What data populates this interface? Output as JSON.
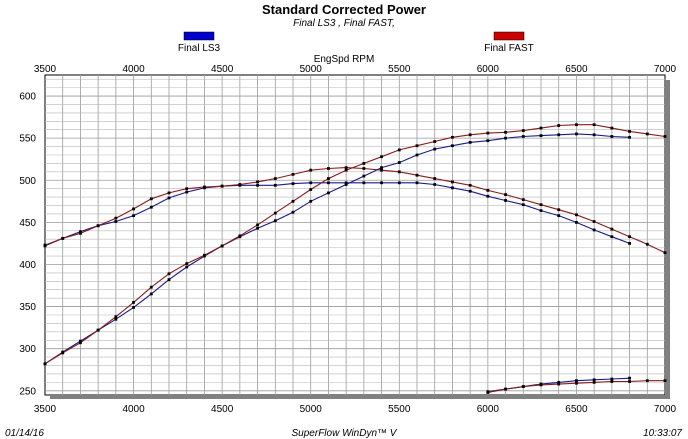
{
  "chart_data": {
    "type": "line",
    "title": "Standard Corrected Power",
    "subtitle": "Final LS3 , Final FAST,",
    "xlabel": "EngSpd RPM",
    "x_ticks": [
      3500,
      4000,
      4500,
      5000,
      5500,
      6000,
      6500,
      7000
    ],
    "y_ticks": [
      250,
      300,
      350,
      400,
      450,
      500,
      550,
      600
    ],
    "xlim": [
      3500,
      7000
    ],
    "ylim": [
      245,
      625
    ],
    "grid": true,
    "legend": [
      {
        "name": "Final LS3",
        "color": "#0000cc"
      },
      {
        "name": "Final FAST",
        "color": "#cc0000"
      }
    ],
    "series": [
      {
        "name": "Final LS3 Torque",
        "color": "#1a1a8c",
        "x": [
          3500,
          3600,
          3700,
          3800,
          3900,
          4000,
          4100,
          4200,
          4300,
          4400,
          4500,
          4600,
          4700,
          4800,
          4900,
          5000,
          5100,
          5200,
          5300,
          5400,
          5500,
          5600,
          5700,
          5800,
          5900,
          6000,
          6100,
          6200,
          6300,
          6400,
          6500,
          6600,
          6700,
          6800
        ],
        "y": [
          422,
          431,
          439,
          446,
          451,
          458,
          468,
          479,
          486,
          491,
          493,
          494,
          494,
          494,
          496,
          497,
          497,
          497,
          497,
          497,
          497,
          497,
          495,
          491,
          487,
          481,
          476,
          471,
          464,
          458,
          450,
          441,
          433,
          425
        ]
      },
      {
        "name": "Final FAST Torque",
        "color": "#8c1a1a",
        "x": [
          3500,
          3600,
          3700,
          3800,
          3900,
          4000,
          4100,
          4200,
          4300,
          4400,
          4500,
          4600,
          4700,
          4800,
          4900,
          5000,
          5100,
          5200,
          5300,
          5400,
          5500,
          5600,
          5700,
          5800,
          5900,
          6000,
          6100,
          6200,
          6300,
          6400,
          6500,
          6600,
          6700,
          6800,
          6900,
          7000
        ],
        "y": [
          423,
          431,
          437,
          446,
          455,
          466,
          478,
          485,
          490,
          492,
          493,
          495,
          498,
          502,
          507,
          512,
          514,
          515,
          514,
          512,
          510,
          506,
          502,
          498,
          494,
          488,
          483,
          477,
          471,
          465,
          459,
          451,
          442,
          433,
          424,
          414
        ]
      },
      {
        "name": "Final LS3 Power",
        "color": "#1a1a8c",
        "x": [
          3500,
          3600,
          3700,
          3800,
          3900,
          4000,
          4100,
          4200,
          4300,
          4400,
          4500,
          4600,
          4700,
          4800,
          4900,
          5000,
          5100,
          5200,
          5300,
          5400,
          5500,
          5600,
          5700,
          5800,
          5900,
          6000,
          6100,
          6200,
          6300,
          6400,
          6500,
          6600,
          6700,
          6800
        ],
        "y": [
          282,
          296,
          309,
          322,
          335,
          349,
          365,
          382,
          397,
          410,
          422,
          433,
          443,
          452,
          462,
          475,
          485,
          495,
          505,
          515,
          521,
          530,
          537,
          541,
          545,
          547,
          550,
          552,
          553,
          554,
          555,
          554,
          552,
          551
        ]
      },
      {
        "name": "Final FAST Power",
        "color": "#8c1a1a",
        "x": [
          3500,
          3600,
          3700,
          3800,
          3900,
          4000,
          4100,
          4200,
          4300,
          4400,
          4500,
          4600,
          4700,
          4800,
          4900,
          5000,
          5100,
          5200,
          5300,
          5400,
          5500,
          5600,
          5700,
          5800,
          5900,
          6000,
          6100,
          6200,
          6300,
          6400,
          6500,
          6600,
          6700,
          6800,
          6900,
          7000
        ],
        "y": [
          282,
          295,
          307,
          322,
          338,
          355,
          373,
          389,
          401,
          411,
          422,
          434,
          447,
          461,
          475,
          489,
          502,
          512,
          520,
          528,
          536,
          541,
          546,
          551,
          554,
          556,
          557,
          559,
          562,
          565,
          566,
          566,
          562,
          558,
          555,
          552
        ]
      },
      {
        "name": "Final LS3 Lower",
        "color": "#1a1a8c",
        "x": [
          6000,
          6100,
          6200,
          6300,
          6400,
          6500,
          6600,
          6700,
          6800
        ],
        "y": [
          248,
          252,
          255,
          258,
          260,
          262,
          263,
          264,
          265
        ]
      },
      {
        "name": "Final FAST Lower",
        "color": "#8c1a1a",
        "x": [
          6000,
          6100,
          6200,
          6300,
          6400,
          6500,
          6600,
          6700,
          6800,
          6900,
          7000
        ],
        "y": [
          249,
          252,
          255,
          257,
          258,
          259,
          260,
          261,
          261,
          262,
          262
        ]
      }
    ]
  },
  "footer": {
    "date": "01/14/16",
    "software": "SuperFlow WinDyn™ V",
    "time": "10:33:07"
  }
}
